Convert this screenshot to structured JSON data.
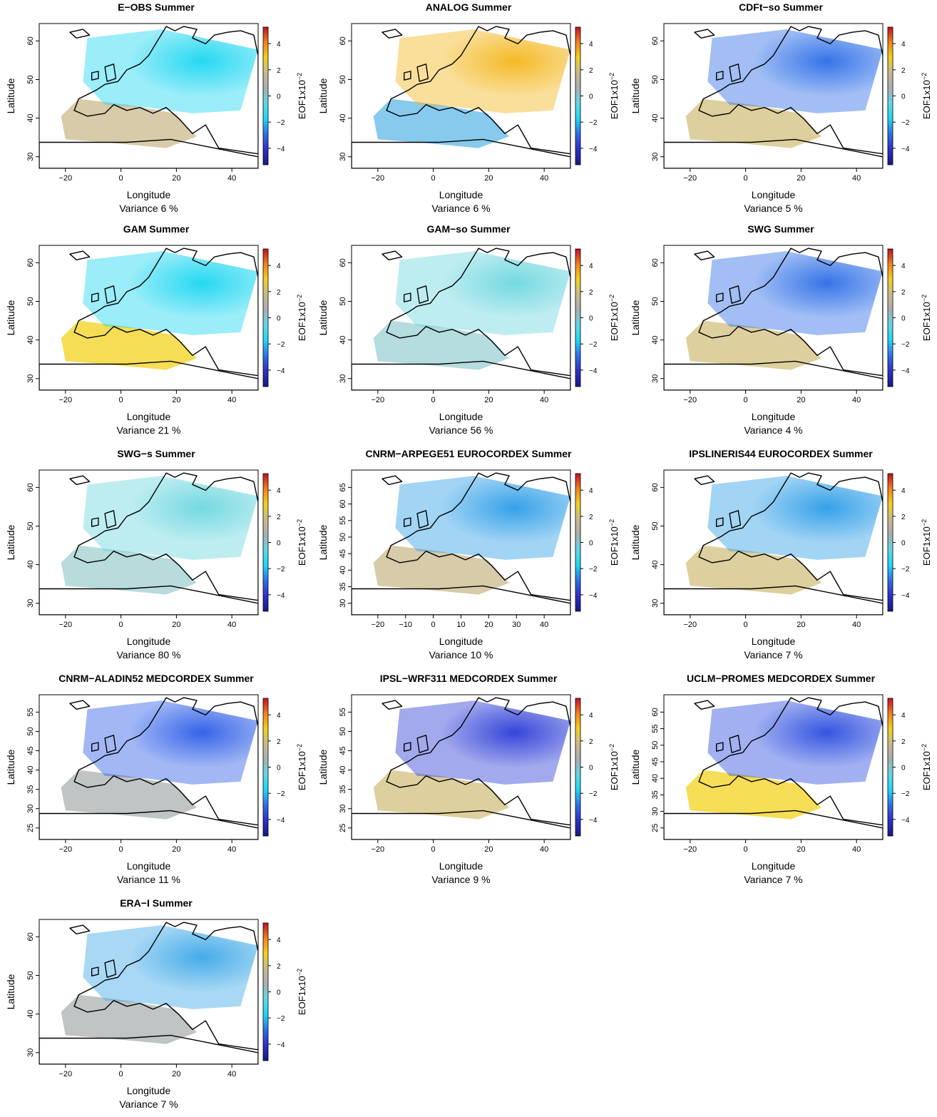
{
  "shared": {
    "xlabel": "Longitude",
    "ylabel": "Latitude",
    "colorbar_label": "EOF1x10",
    "colorbar_exponent": "−2",
    "colorbar_ticks": [
      "4",
      "2",
      "0",
      "−2",
      "−4"
    ],
    "colorbar_colors": [
      "#c0102a",
      "#f4821c",
      "#f2d11e",
      "#c9b98e",
      "#a9b0b0",
      "#5fd8e8",
      "#1ed7f2",
      "#2f6fe8",
      "#2f2fc8",
      "#1a1a80"
    ],
    "land_outline_color": "#000000"
  },
  "chart_data": [
    {
      "type": "map",
      "title": "E−OBS Summer",
      "variance_label": "Variance 6 %",
      "xticks": [
        "−20",
        "0",
        "20",
        "40"
      ],
      "yticks": [
        "30",
        "40",
        "50",
        "60"
      ],
      "dominant_sign": "negative",
      "pattern": [
        "#1ed7f2",
        "#c9b98e"
      ]
    },
    {
      "type": "map",
      "title": "ANALOG Summer",
      "variance_label": "Variance 6 %",
      "xticks": [
        "−20",
        "0",
        "20",
        "40"
      ],
      "yticks": [
        "30",
        "40",
        "50",
        "60"
      ],
      "dominant_sign": "mixed",
      "pattern": [
        "#f4b820",
        "#5fb8e8"
      ]
    },
    {
      "type": "map",
      "title": "CDFt−so Summer",
      "variance_label": "Variance 5 %",
      "xticks": [
        "−20",
        "0",
        "20",
        "40"
      ],
      "yticks": [
        "30",
        "40",
        "50",
        "60"
      ],
      "dominant_sign": "negative",
      "pattern": [
        "#2f6fe8",
        "#d2c07e"
      ]
    },
    {
      "type": "map",
      "title": "GAM Summer",
      "variance_label": "Variance 21 %",
      "xticks": [
        "−20",
        "0",
        "20",
        "40"
      ],
      "yticks": [
        "30",
        "40",
        "50",
        "60"
      ],
      "dominant_sign": "mixed",
      "pattern": [
        "#1ed7f2",
        "#f2d11e"
      ]
    },
    {
      "type": "map",
      "title": "GAM−so Summer",
      "variance_label": "Variance 56 %",
      "xticks": [
        "−20",
        "0",
        "20",
        "40"
      ],
      "yticks": [
        "30",
        "40",
        "50",
        "60"
      ],
      "dominant_sign": "negative",
      "pattern": [
        "#6fd8e0",
        "#9cd0d4"
      ]
    },
    {
      "type": "map",
      "title": "SWG Summer",
      "variance_label": "Variance 4 %",
      "xticks": [
        "−20",
        "0",
        "20",
        "40"
      ],
      "yticks": [
        "30",
        "40",
        "50",
        "60"
      ],
      "dominant_sign": "negative",
      "pattern": [
        "#2f6fe8",
        "#d2c07e"
      ]
    },
    {
      "type": "map",
      "title": "SWG−s Summer",
      "variance_label": "Variance 80 %",
      "xticks": [
        "−20",
        "0",
        "20",
        "40"
      ],
      "yticks": [
        "30",
        "40",
        "50",
        "60"
      ],
      "dominant_sign": "negative",
      "pattern": [
        "#6fd8e0",
        "#a0cfd0"
      ]
    },
    {
      "type": "map",
      "title": "CNRM−ARPEGE51 EUROCORDEX Summer",
      "variance_label": "Variance 10 %",
      "xticks": [
        "−20",
        "−10",
        "0",
        "10",
        "20",
        "30",
        "40"
      ],
      "yticks": [
        "30",
        "35",
        "40",
        "45",
        "50",
        "55",
        "60",
        "65"
      ],
      "dominant_sign": "negative",
      "pattern": [
        "#2f9fe8",
        "#c9b98e"
      ]
    },
    {
      "type": "map",
      "title": "IPSLINERIS44 EUROCORDEX Summer",
      "variance_label": "Variance 7 %",
      "xticks": [
        "−20",
        "0",
        "20",
        "40"
      ],
      "yticks": [
        "30",
        "40",
        "50",
        "60"
      ],
      "dominant_sign": "negative",
      "pattern": [
        "#2f9fe8",
        "#d2c07e"
      ]
    },
    {
      "type": "map",
      "title": "CNRM−ALADIN52 MEDCORDEX Summer",
      "variance_label": "Variance 11 %",
      "xticks": [
        "−20",
        "0",
        "20",
        "40"
      ],
      "yticks": [
        "25",
        "30",
        "35",
        "40",
        "45",
        "50",
        "55"
      ],
      "dominant_sign": "negative",
      "pattern": [
        "#2f5fe8",
        "#a9b0b0"
      ]
    },
    {
      "type": "map",
      "title": "IPSL−WRF311 MEDCORDEX Summer",
      "variance_label": "Variance 9 %",
      "xticks": [
        "−20",
        "0",
        "20",
        "40"
      ],
      "yticks": [
        "25",
        "30",
        "35",
        "40",
        "45",
        "50",
        "55"
      ],
      "dominant_sign": "negative",
      "pattern": [
        "#2f3fd8",
        "#d2c07e"
      ]
    },
    {
      "type": "map",
      "title": "UCLM−PROMES MEDCORDEX Summer",
      "variance_label": "Variance 7 %",
      "xticks": [
        "−20",
        "0",
        "20",
        "40"
      ],
      "yticks": [
        "25",
        "30",
        "35",
        "40",
        "45",
        "50",
        "55",
        "60"
      ],
      "dominant_sign": "mixed",
      "pattern": [
        "#2f4fe0",
        "#f2d11e"
      ]
    },
    {
      "type": "map",
      "title": "ERA−I Summer",
      "variance_label": "Variance 7 %",
      "xticks": [
        "−20",
        "0",
        "20",
        "40"
      ],
      "yticks": [
        "30",
        "40",
        "50",
        "60"
      ],
      "dominant_sign": "negative",
      "pattern": [
        "#3fa8e8",
        "#a9b0b0"
      ]
    }
  ]
}
